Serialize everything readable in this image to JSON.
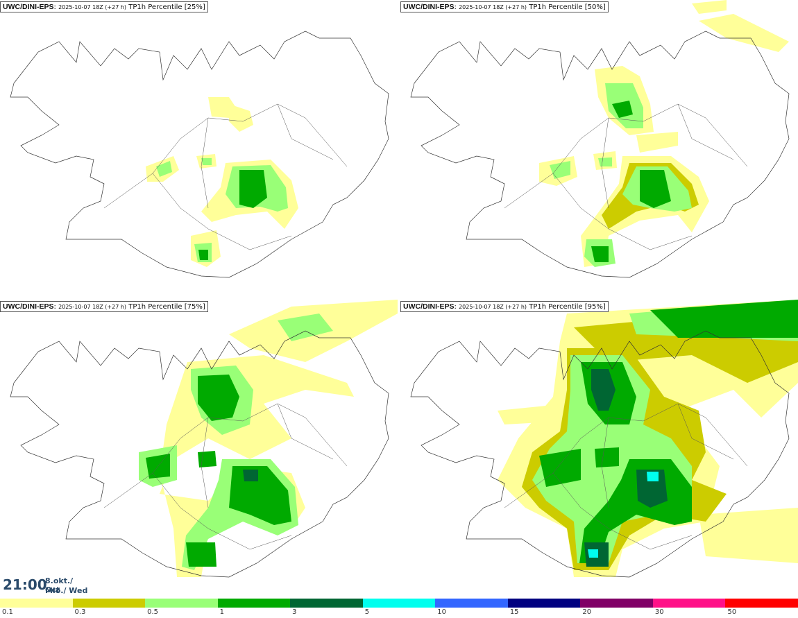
{
  "panels": [
    {
      "model": "UWC/DINI-EPS",
      "run": "2025-10-07 18Z (+27 h)",
      "field": "TP1h Percentile [25%]"
    },
    {
      "model": "UWC/DINI-EPS",
      "run": "2025-10-07 18Z (+27 h)",
      "field": "TP1h Percentile [50%]"
    },
    {
      "model": "UWC/DINI-EPS",
      "run": "2025-10-07 18Z (+27 h)",
      "field": "TP1h Percentile [75%]"
    },
    {
      "model": "UWC/DINI-EPS",
      "run": "2025-10-07 18Z (+27 h)",
      "field": "TP1h Percentile [95%]"
    }
  ],
  "valid": {
    "time": "21:00",
    "date_line1": "8.okt./ Oct",
    "date_line2": "Mið./ Wed"
  },
  "legend": {
    "colors": [
      "#ffff99",
      "#cccc00",
      "#99ff77",
      "#00aa00",
      "#006633",
      "#00ffee",
      "#3366ff",
      "#000080",
      "#800066",
      "#ff1188",
      "#ff0000"
    ],
    "labels": [
      "0.1",
      "0.3",
      "0.5",
      "1",
      "3",
      "5",
      "10",
      "15",
      "20",
      "30",
      "50"
    ]
  },
  "colors": {
    "light_yellow": "#ffff99",
    "olive": "#cccc00",
    "light_green": "#99ff77",
    "green": "#00aa00",
    "dark_green": "#006633",
    "cyan": "#00ffee",
    "coast": "#333333"
  }
}
